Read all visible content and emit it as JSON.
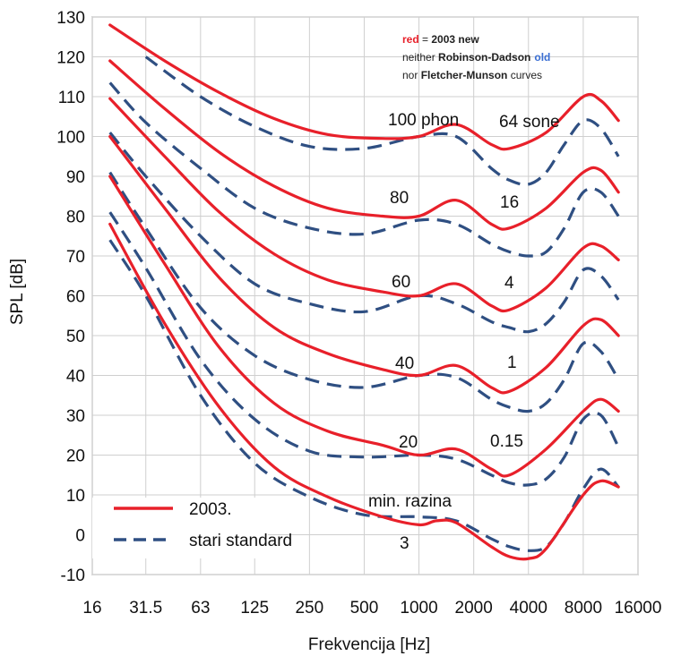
{
  "chart_data": {
    "type": "line",
    "xlabel": "Frekvencija [Hz]",
    "ylabel": "SPL [dB]",
    "x_scale": "log2",
    "xlim": [
      16,
      16000
    ],
    "ylim": [
      -10,
      130
    ],
    "x_ticks": [
      "16",
      "31.5",
      "63",
      "125",
      "250",
      "500",
      "1000",
      "2000",
      "4000",
      "8000",
      "16000"
    ],
    "y_ticks": [
      "-10",
      "0",
      "10",
      "20",
      "30",
      "40",
      "50",
      "60",
      "70",
      "80",
      "90",
      "100",
      "110",
      "120",
      "130"
    ],
    "grid": true,
    "annotation": {
      "line1": {
        "bold_red": "red",
        "mid": " = ",
        "bold": "2003 new"
      },
      "line2": {
        "pre": "neither ",
        "bold": "Robinson-Dadson",
        "blue": "old"
      },
      "line3": {
        "pre": "nor ",
        "bold": "Fletcher-Munson",
        "post": " curves"
      }
    },
    "phon_labels": [
      "100 phon",
      "80",
      "60",
      "40",
      "20",
      "min. razina",
      "3"
    ],
    "sone_labels": [
      "64 sone",
      "16",
      "4",
      "1",
      "0.15"
    ],
    "legend": {
      "position": "bottom-left",
      "entries": [
        "2003.",
        "stari standard"
      ]
    },
    "colors": {
      "new": "#e8202a",
      "old": "#2f4f82"
    },
    "series_new": [
      {
        "x": [
          20,
          40,
          80,
          160,
          315,
          630,
          1000,
          1600,
          2500,
          3150,
          5000,
          8000,
          10000,
          12500
        ],
        "y": [
          128,
          119,
          111,
          104.5,
          100.5,
          99.5,
          100,
          103,
          98,
          97,
          101,
          110,
          109,
          104
        ]
      },
      {
        "x": [
          20,
          40,
          80,
          160,
          315,
          630,
          1000,
          1600,
          2500,
          3150,
          5000,
          8000,
          10000,
          12500
        ],
        "y": [
          119,
          107,
          96,
          87.5,
          82,
          80,
          80,
          84,
          78,
          77,
          82,
          91,
          91.5,
          86
        ]
      },
      {
        "x": [
          20,
          40,
          80,
          160,
          315,
          630,
          1000,
          1600,
          2500,
          3150,
          5000,
          8000,
          10000,
          12500
        ],
        "y": [
          109.5,
          95,
          81,
          70.5,
          64,
          61,
          60,
          63,
          57.5,
          56.5,
          62,
          72,
          72.5,
          69
        ]
      },
      {
        "x": [
          20,
          40,
          80,
          160,
          315,
          630,
          1000,
          1600,
          2500,
          3150,
          5000,
          8000,
          10000,
          12500
        ],
        "y": [
          100,
          82,
          64.5,
          52,
          45.5,
          41.5,
          40,
          42.5,
          37,
          36,
          42,
          52.5,
          54,
          50
        ]
      },
      {
        "x": [
          20,
          40,
          80,
          160,
          315,
          630,
          1000,
          1600,
          2500,
          3150,
          5000,
          8000,
          10000,
          12500
        ],
        "y": [
          90,
          68,
          47,
          33,
          26,
          22.5,
          20,
          21.5,
          16.5,
          15,
          21.5,
          31,
          34,
          31
        ]
      },
      {
        "x": [
          20,
          40,
          80,
          160,
          315,
          630,
          1000,
          1250,
          1600,
          2500,
          3150,
          4000,
          5000,
          8000,
          10000,
          12500
        ],
        "y": [
          78,
          53,
          32,
          17,
          9.5,
          4.5,
          2.5,
          3.5,
          3,
          -3,
          -5.5,
          -6,
          -3.5,
          10,
          13.5,
          12
        ]
      }
    ],
    "series_old": [
      {
        "x": [
          31.5,
          63,
          125,
          250,
          500,
          1000,
          1600,
          2500,
          3150,
          4000,
          5000,
          6300,
          8000,
          10000,
          12500
        ],
        "y": [
          120,
          110,
          102.5,
          97.5,
          97,
          100,
          100,
          92,
          89,
          88,
          91,
          98,
          104,
          102,
          95
        ]
      },
      {
        "x": [
          20,
          31.5,
          63,
          125,
          250,
          500,
          1000,
          1600,
          2500,
          3150,
          4000,
          5000,
          6300,
          8000,
          10000,
          12500
        ],
        "y": [
          113.5,
          103.5,
          92,
          82,
          77,
          75.5,
          79,
          78,
          73,
          71,
          70,
          71,
          77,
          86,
          86,
          80
        ]
      },
      {
        "x": [
          20,
          31.5,
          63,
          125,
          250,
          500,
          1000,
          1600,
          2500,
          3150,
          4000,
          5000,
          6300,
          8000,
          10000,
          12500
        ],
        "y": [
          101,
          90,
          75,
          63,
          58,
          56,
          60,
          58,
          53.5,
          52,
          51,
          53,
          58.5,
          66.5,
          65,
          59
        ]
      },
      {
        "x": [
          20,
          31.5,
          63,
          125,
          250,
          500,
          1000,
          1600,
          2500,
          3150,
          4000,
          5000,
          6300,
          8000,
          10000,
          12500
        ],
        "y": [
          91,
          77,
          57,
          45,
          39,
          37,
          40,
          39.5,
          34,
          32,
          31,
          33,
          39,
          48,
          46,
          39
        ]
      },
      {
        "x": [
          20,
          31.5,
          63,
          125,
          250,
          500,
          1000,
          1600,
          2500,
          3150,
          4000,
          5000,
          6300,
          8000,
          10000,
          12500
        ],
        "y": [
          81,
          67,
          44,
          29,
          21,
          19.5,
          20,
          19,
          15,
          13,
          12.5,
          14,
          19.5,
          29,
          30,
          22
        ]
      },
      {
        "x": [
          20,
          31.5,
          63,
          125,
          250,
          500,
          1000,
          1600,
          2500,
          3150,
          4000,
          5000,
          6300,
          8000,
          10000,
          12500
        ],
        "y": [
          74,
          60,
          35,
          18,
          9.5,
          5,
          4.5,
          3.5,
          -1,
          -3,
          -4,
          -3,
          3,
          11.5,
          16.5,
          12
        ]
      }
    ]
  }
}
